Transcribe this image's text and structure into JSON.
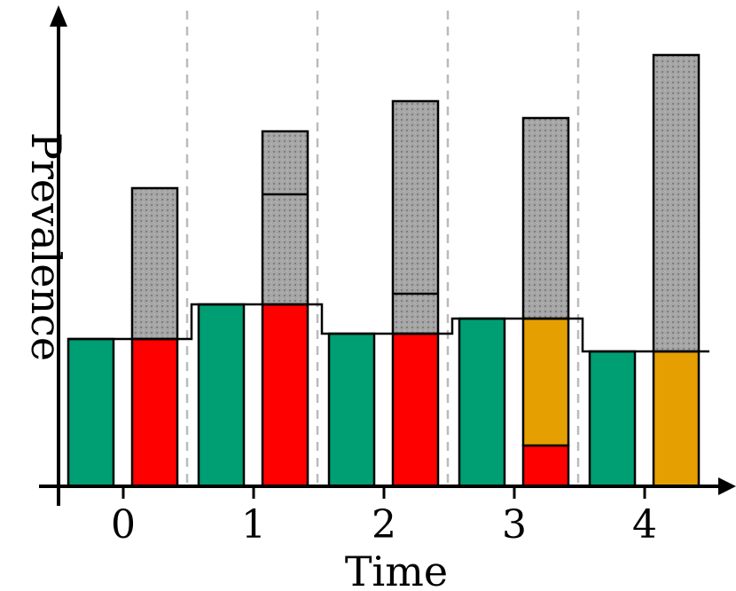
{
  "chart_data": {
    "type": "bar",
    "xlabel": "Time",
    "ylabel": "Prevalence",
    "categories": [
      "0",
      "1",
      "2",
      "3",
      "4"
    ],
    "ylim": [
      0,
      500
    ],
    "grid": false,
    "level_step_line": [
      166,
      205,
      172,
      189,
      152
    ],
    "groups": [
      {
        "time": "0",
        "left_bar": {
          "value": 166,
          "color": "#009E73"
        },
        "right_bar": {
          "segments": [
            {
              "value": 166,
              "color": "#FF0000",
              "pattern": false
            },
            {
              "value": 170,
              "color": "#A0A0A0",
              "pattern": true
            }
          ],
          "divider_lines": []
        }
      },
      {
        "time": "1",
        "left_bar": {
          "value": 205,
          "color": "#009E73"
        },
        "right_bar": {
          "segments": [
            {
              "value": 205,
              "color": "#FF0000",
              "pattern": false
            },
            {
              "value": 195,
              "color": "#A0A0A0",
              "pattern": true
            }
          ],
          "divider_lines": [
            329
          ]
        }
      },
      {
        "time": "2",
        "left_bar": {
          "value": 172,
          "color": "#009E73"
        },
        "right_bar": {
          "segments": [
            {
              "value": 172,
              "color": "#FF0000",
              "pattern": false
            },
            {
              "value": 262,
              "color": "#A0A0A0",
              "pattern": true
            }
          ],
          "divider_lines": [
            217
          ]
        }
      },
      {
        "time": "3",
        "left_bar": {
          "value": 189,
          "color": "#009E73"
        },
        "right_bar": {
          "segments": [
            {
              "value": 46,
              "color": "#FF0000",
              "pattern": false
            },
            {
              "value": 143,
              "color": "#E69F00",
              "pattern": false
            },
            {
              "value": 226,
              "color": "#A0A0A0",
              "pattern": true
            }
          ],
          "divider_lines": []
        }
      },
      {
        "time": "4",
        "left_bar": {
          "value": 152,
          "color": "#009E73"
        },
        "right_bar": {
          "segments": [
            {
              "value": 152,
              "color": "#E69F00",
              "pattern": false
            },
            {
              "value": 334,
              "color": "#A0A0A0",
              "pattern": true
            }
          ],
          "divider_lines": []
        }
      }
    ],
    "colors": {
      "susceptible": "#009E73",
      "red": "#FF0000",
      "orange": "#E69F00",
      "gray": "#A0A0A0",
      "separator": "#BBBBBB"
    }
  }
}
